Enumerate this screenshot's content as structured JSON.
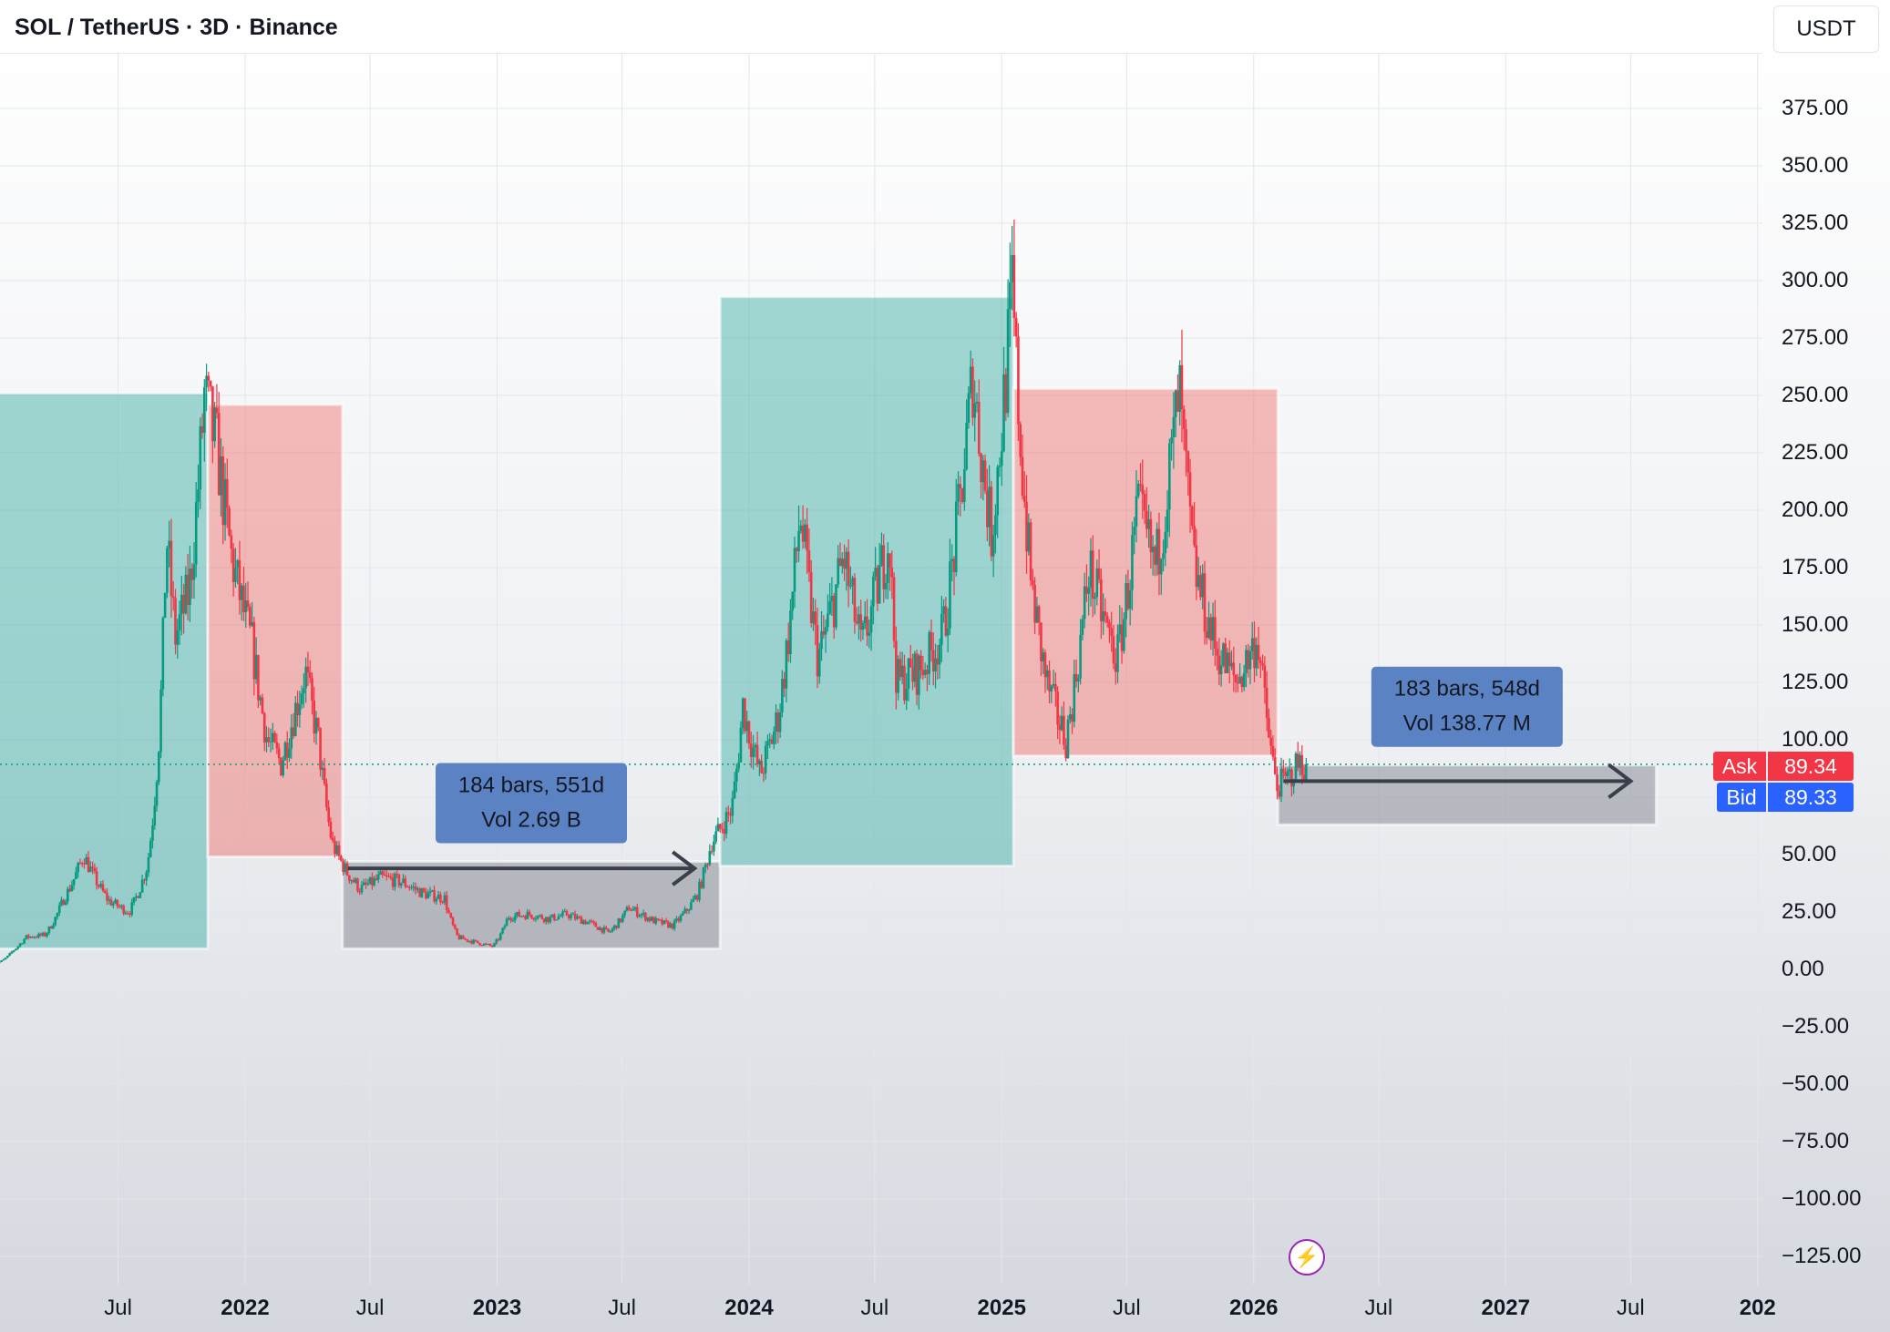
{
  "header": {
    "title": "SOL / TetherUS · 3D · Binance",
    "currency": "USDT"
  },
  "colors": {
    "up": "#089981",
    "down": "#f23645",
    "up_zone": "rgba(38,166,154,0.42)",
    "down_zone": "rgba(239,83,80,0.38)",
    "range_zone": "rgba(120,123,134,0.45)",
    "label_box": "#5b83c4",
    "ask": "#f23645",
    "bid": "#2962ff"
  },
  "price": {
    "ask_label": "Ask",
    "ask_value": "89.34",
    "bid_label": "Bid",
    "bid_value": "89.33",
    "current": 89.34
  },
  "measurements": [
    {
      "bars": "184 bars, 551d",
      "vol": "Vol 2.69 B"
    },
    {
      "bars": "183 bars, 548d",
      "vol": "Vol 138.77 M"
    }
  ],
  "chart_data": {
    "type": "candlestick",
    "symbol": "SOL / TetherUS",
    "interval": "3D",
    "exchange": "Binance",
    "ylim": [
      -135,
      395
    ],
    "y_ticks": [
      "375.00",
      "350.00",
      "325.00",
      "300.00",
      "275.00",
      "250.00",
      "225.00",
      "200.00",
      "175.00",
      "150.00",
      "125.00",
      "100.00",
      "75.00",
      "50.00",
      "25.00",
      "0.00",
      "−25.00",
      "−50.00",
      "−75.00",
      "−100.00",
      "−125.00"
    ],
    "y_tick_values": [
      375,
      350,
      325,
      300,
      275,
      250,
      225,
      200,
      175,
      150,
      125,
      100,
      75,
      50,
      25,
      0,
      -25,
      -50,
      -75,
      -100,
      -125
    ],
    "xlim": [
      "2021-01-01",
      "2028-01-01"
    ],
    "x_ticks": [
      {
        "label": "Jul",
        "date": "2021-07-01",
        "bold": false
      },
      {
        "label": "2022",
        "date": "2022-01-01",
        "bold": true
      },
      {
        "label": "Jul",
        "date": "2022-07-01",
        "bold": false
      },
      {
        "label": "2023",
        "date": "2023-01-01",
        "bold": true
      },
      {
        "label": "Jul",
        "date": "2023-07-01",
        "bold": false
      },
      {
        "label": "2024",
        "date": "2024-01-01",
        "bold": true
      },
      {
        "label": "Jul",
        "date": "2024-07-01",
        "bold": false
      },
      {
        "label": "2025",
        "date": "2025-01-01",
        "bold": true
      },
      {
        "label": "Jul",
        "date": "2025-07-01",
        "bold": false
      },
      {
        "label": "2026",
        "date": "2026-01-01",
        "bold": true
      },
      {
        "label": "Jul",
        "date": "2026-07-01",
        "bold": false
      },
      {
        "label": "2027",
        "date": "2027-01-01",
        "bold": true
      },
      {
        "label": "Jul",
        "date": "2027-07-01",
        "bold": false
      },
      {
        "label": "202",
        "date": "2028-01-01",
        "bold": true
      }
    ],
    "price_path": [
      [
        "2021-01-01",
        1.8
      ],
      [
        "2021-02-01",
        8
      ],
      [
        "2021-02-20",
        14
      ],
      [
        "2021-03-20",
        15
      ],
      [
        "2021-04-15",
        30
      ],
      [
        "2021-05-15",
        50
      ],
      [
        "2021-06-20",
        30
      ],
      [
        "2021-07-20",
        25
      ],
      [
        "2021-08-15",
        45
      ],
      [
        "2021-09-01",
        100
      ],
      [
        "2021-09-12",
        190
      ],
      [
        "2021-09-25",
        145
      ],
      [
        "2021-10-15",
        165
      ],
      [
        "2021-11-06",
        250
      ],
      [
        "2021-11-25",
        225
      ],
      [
        "2021-12-15",
        180
      ],
      [
        "2022-01-15",
        140
      ],
      [
        "2022-02-05",
        100
      ],
      [
        "2022-02-25",
        90
      ],
      [
        "2022-03-10",
        105
      ],
      [
        "2022-04-01",
        130
      ],
      [
        "2022-04-20",
        100
      ],
      [
        "2022-05-10",
        55
      ],
      [
        "2022-06-01",
        42
      ],
      [
        "2022-06-20",
        35
      ],
      [
        "2022-07-20",
        40
      ],
      [
        "2022-08-20",
        38
      ],
      [
        "2022-09-20",
        33
      ],
      [
        "2022-10-20",
        31
      ],
      [
        "2022-11-08",
        14
      ],
      [
        "2022-12-29",
        10
      ],
      [
        "2023-01-20",
        23
      ],
      [
        "2023-02-20",
        24
      ],
      [
        "2023-03-20",
        22
      ],
      [
        "2023-04-15",
        24
      ],
      [
        "2023-05-20",
        20
      ],
      [
        "2023-06-15",
        16
      ],
      [
        "2023-07-14",
        27
      ],
      [
        "2023-08-20",
        21
      ],
      [
        "2023-09-15",
        19
      ],
      [
        "2023-10-20",
        32
      ],
      [
        "2023-11-10",
        55
      ],
      [
        "2023-12-10",
        70
      ],
      [
        "2023-12-26",
        115
      ],
      [
        "2024-01-20",
        85
      ],
      [
        "2024-02-15",
        110
      ],
      [
        "2024-03-18",
        200
      ],
      [
        "2024-04-13",
        135
      ],
      [
        "2024-05-20",
        180
      ],
      [
        "2024-06-15",
        140
      ],
      [
        "2024-07-25",
        190
      ],
      [
        "2024-08-05",
        125
      ],
      [
        "2024-09-06",
        130
      ],
      [
        "2024-10-10",
        145
      ],
      [
        "2024-11-23",
        260
      ],
      [
        "2024-12-20",
        190
      ],
      [
        "2025-01-19",
        295
      ],
      [
        "2025-02-15",
        170
      ],
      [
        "2025-03-10",
        125
      ],
      [
        "2025-04-07",
        100
      ],
      [
        "2025-05-10",
        175
      ],
      [
        "2025-06-20",
        135
      ],
      [
        "2025-07-20",
        200
      ],
      [
        "2025-08-15",
        175
      ],
      [
        "2025-09-18",
        252
      ],
      [
        "2025-10-10",
        175
      ],
      [
        "2025-11-10",
        140
      ],
      [
        "2025-12-10",
        125
      ],
      [
        "2026-01-10",
        145
      ],
      [
        "2026-02-06",
        80
      ],
      [
        "2026-02-20",
        82
      ],
      [
        "2026-03-10",
        90
      ],
      [
        "2026-03-18",
        89.34
      ]
    ],
    "zones": [
      {
        "kind": "up",
        "from": "2021-01-06",
        "to": "2021-11-08",
        "low": 9,
        "high": 251
      },
      {
        "kind": "down",
        "from": "2021-11-08",
        "to": "2022-05-22",
        "low": 49,
        "high": 246
      },
      {
        "kind": "range",
        "from": "2022-05-22",
        "to": "2023-11-20",
        "low": 9,
        "high": 47
      },
      {
        "kind": "up",
        "from": "2023-11-20",
        "to": "2025-01-18",
        "low": 45,
        "high": 293
      },
      {
        "kind": "down",
        "from": "2025-01-18",
        "to": "2026-02-05",
        "low": 93,
        "high": 253
      },
      {
        "kind": "range",
        "from": "2026-02-05",
        "to": "2027-08-07",
        "low": 63,
        "high": 89
      }
    ]
  }
}
